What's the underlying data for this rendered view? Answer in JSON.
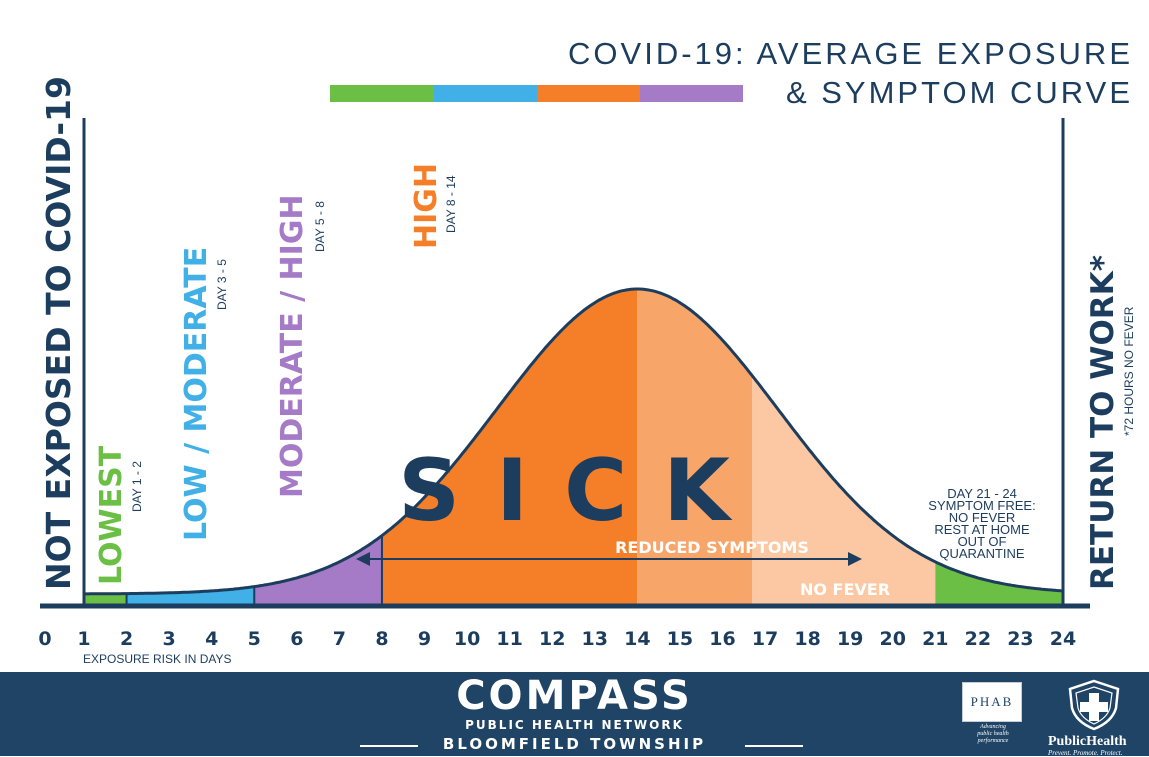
{
  "title": {
    "line1": "COVID-19: AVERAGE EXPOSURE",
    "line2": "& SYMPTOM CURVE"
  },
  "colors": {
    "navy": "#1c3d5e",
    "green": "#6cbf45",
    "blue": "#40b0e6",
    "purple": "#a57ac7",
    "orange": "#f57f29",
    "orange_light": "#f8a56a",
    "peach": "#fbc8a3",
    "footer": "#1f4466"
  },
  "left_label": "NOT EXPOSED TO COVID-19",
  "right_label": {
    "main": "RETURN TO WORK*",
    "note": "*72 HOURS NO FEVER"
  },
  "risk_levels": [
    {
      "name": "LOWEST",
      "days": "DAY 1 - 2",
      "color": "green"
    },
    {
      "name": "LOW / MODERATE",
      "days": "DAY 3 - 5",
      "color": "blue"
    },
    {
      "name": "MODERATE / HIGH",
      "days": "DAY 5 - 8",
      "color": "purple"
    },
    {
      "name": "HIGH",
      "days": "DAY 8 - 14",
      "color": "orange"
    }
  ],
  "chart_data": {
    "type": "area",
    "title": "COVID-19: AVERAGE EXPOSURE & SYMPTOM CURVE",
    "xlabel": "EXPOSURE RISK IN DAYS",
    "ylabel": "",
    "x_ticks": [
      "0",
      "1",
      "2",
      "3",
      "4",
      "5",
      "6",
      "7",
      "8",
      "9",
      "10",
      "11",
      "12",
      "13",
      "14",
      "15",
      "16",
      "17",
      "18",
      "19",
      "20",
      "21",
      "22",
      "23",
      "24"
    ],
    "xlim": [
      0,
      24
    ],
    "peak_day": 14,
    "segments": [
      {
        "label": "LOWEST",
        "from_day": 1,
        "to_day": 2
      },
      {
        "label": "LOW / MODERATE",
        "from_day": 2,
        "to_day": 5
      },
      {
        "label": "MODERATE / HIGH",
        "from_day": 5,
        "to_day": 8
      },
      {
        "label": "HIGH",
        "from_day": 8,
        "to_day": 14
      },
      {
        "label": "REDUCED SYMPTOMS",
        "from_day": 14,
        "to_day": 16.7
      },
      {
        "label": "NO FEVER",
        "from_day": 16.7,
        "to_day": 21
      },
      {
        "label": "SYMPTOM FREE",
        "from_day": 21,
        "to_day": 24
      }
    ],
    "annotations": {
      "sick": "SICK",
      "reduced_symptoms": "REDUCED SYMPTOMS",
      "no_fever": "NO FEVER",
      "symptom_free": [
        "DAY 21 - 24",
        "SYMPTOM FREE:",
        "NO FEVER",
        "REST AT HOME",
        "OUT OF",
        "QUARANTINE"
      ]
    }
  },
  "footer": {
    "logo": "COMPASS",
    "network": "PUBLIC HEALTH NETWORK",
    "township": "BLOOMFIELD TOWNSHIP",
    "phab": "PHAB",
    "phab_tag": [
      "Advancing",
      "public health",
      "performance"
    ],
    "public_health": "PublicHealth",
    "public_health_tag": "Prevent. Promote. Protect."
  }
}
